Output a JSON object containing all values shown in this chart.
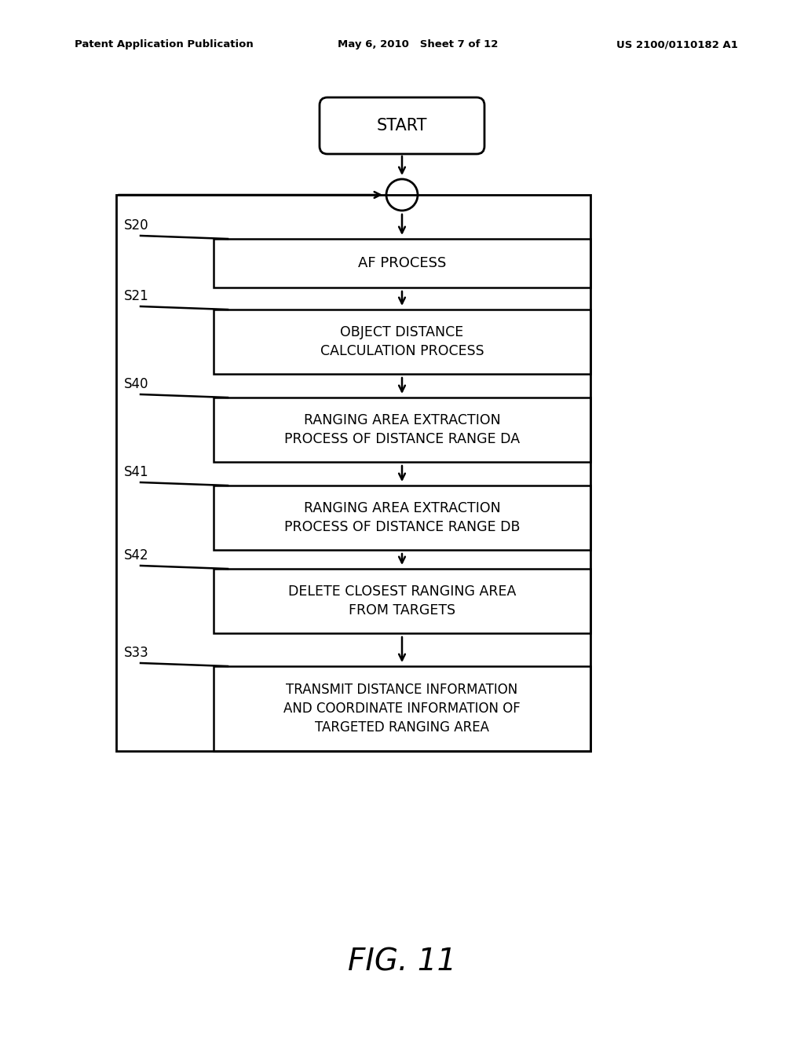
{
  "bg_color": "#ffffff",
  "text_color": "#000000",
  "header_left": "Patent Application Publication",
  "header_mid": "May 6, 2010   Sheet 7 of 12",
  "header_right": "US 2100/0110182 A1",
  "fig_label": "FIG. 11",
  "start_label": "START",
  "step_labels": [
    "S20",
    "S21",
    "S40",
    "S41",
    "S42",
    "S33"
  ],
  "box_texts": [
    "AF PROCESS",
    "OBJECT DISTANCE\nCALCULATION PROCESS",
    "RANGING AREA EXTRACTION\nPROCESS OF DISTANCE RANGE DA",
    "RANGING AREA EXTRACTION\nPROCESS OF DISTANCE RANGE DB",
    "DELETE CLOSEST RANGING AREA\nFROM TARGETS",
    "TRANSMIT DISTANCE INFORMATION\nAND COORDINATE INFORMATION OF\nTARGETED RANGING AREA"
  ],
  "box_nlines": [
    1,
    2,
    2,
    2,
    2,
    3
  ]
}
